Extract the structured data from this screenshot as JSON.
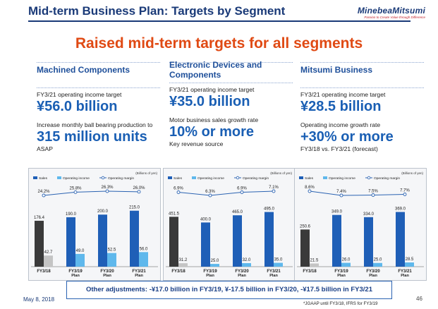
{
  "slide": {
    "title": "Mid-term Business Plan: Targets by Segment",
    "headline": "Raised mid-term targets for all segments",
    "logo_name": "MinebeaMitsumi",
    "logo_tagline": "Passion to Create Value through Difference"
  },
  "segments": [
    {
      "name": "Machined Components",
      "target_label": "FY3/21 operating income target",
      "target_value": "¥56.0 billion",
      "sub_label_line1": "Increase monthly ball bearing production to",
      "sub_value": "315 million units",
      "sub_note": "ASAP"
    },
    {
      "name_line1": "Electronic Devices and",
      "name_line2": "Components",
      "target_label": "FY3/21 operating income target",
      "target_value": "¥35.0 billion",
      "sub_label_line1": "Motor business sales growth rate",
      "sub_value": "10% or more",
      "sub_note": "Key revenue source"
    },
    {
      "name": "Mitsumi Business",
      "target_label": "FY3/21 operating income target",
      "target_value": "¥28.5 billion",
      "sub_label_line1": "Operating income growth rate",
      "sub_value": "+30% or more",
      "sub_note": "FY3/18 vs. FY3/21 (forecast)"
    }
  ],
  "chart_data": [
    {
      "type": "bar",
      "title": "Machined Components",
      "unit_label": "(Billions of yen)",
      "legend": [
        "Sales",
        "Operating income",
        "Operating margin"
      ],
      "categories": [
        "FY3/18",
        "FY3/19 Plan",
        "FY3/20 Plan",
        "FY3/21 Plan"
      ],
      "series": [
        {
          "name": "Sales",
          "values": [
            176.4,
            190.0,
            200.0,
            215.0
          ],
          "labels": [
            "176.4",
            "190.0",
            "200.0",
            "215.0"
          ]
        },
        {
          "name": "Operating income",
          "values": [
            42.7,
            49.0,
            52.5,
            56.0
          ],
          "labels": [
            "42.7",
            "49.0",
            "52.5",
            "56.0"
          ]
        }
      ],
      "margin": {
        "name": "Operating margin",
        "values": [
          24.2,
          25.8,
          26.3,
          26.0
        ],
        "labels": [
          "24.2%",
          "25.8%",
          "26.3%",
          "26.0%"
        ]
      },
      "ymax": 225
    },
    {
      "type": "bar",
      "title": "Electronic Devices and Components",
      "unit_label": "(Billions of yen)",
      "legend": [
        "Sales",
        "Operating income",
        "Operating margin"
      ],
      "categories": [
        "FY3/18",
        "FY3/19 Plan",
        "FY3/20 Plan",
        "FY3/21 Plan"
      ],
      "series": [
        {
          "name": "Sales",
          "values": [
            451.5,
            400.0,
            465.0,
            495.0
          ],
          "labels": [
            "451.5",
            "400.0",
            "465.0",
            "495.0"
          ]
        },
        {
          "name": "Operating income",
          "values": [
            31.2,
            25.0,
            32.0,
            35.0
          ],
          "labels": [
            "31.2",
            "25.0",
            "32.0",
            "35.0"
          ]
        }
      ],
      "margin": {
        "name": "Operating margin",
        "values": [
          6.9,
          6.3,
          6.9,
          7.1
        ],
        "labels": [
          "6.9%",
          "6.3%",
          "6.9%",
          "7.1%"
        ]
      },
      "ymax": 530
    },
    {
      "type": "bar",
      "title": "Mitsumi Business",
      "unit_label": "(Billions of yen)",
      "legend": [
        "Sales",
        "Operating income",
        "Operating margin"
      ],
      "categories": [
        "FY3/18",
        "FY3/19 Plan",
        "FY3/20 Plan",
        "FY3/21 Plan"
      ],
      "series": [
        {
          "name": "Sales",
          "values": [
            250.6,
            349.0,
            334.0,
            369.0
          ],
          "labels": [
            "250.6",
            "349.0",
            "334.0",
            "369.0"
          ]
        },
        {
          "name": "Operating income",
          "values": [
            21.5,
            26.0,
            25.0,
            28.5
          ],
          "labels": [
            "21.5",
            "26.0",
            "25.0",
            "28.5"
          ]
        }
      ],
      "margin": {
        "name": "Operating margin",
        "values": [
          8.6,
          7.4,
          7.5,
          7.7
        ],
        "labels": [
          "8.6%",
          "7.4%",
          "7.5%",
          "7.7%"
        ]
      },
      "ymax": 395
    }
  ],
  "colors": {
    "sales_actual": "#3a3a3a",
    "oi_actual": "#c4c4c4",
    "sales_plan": "#1f5fb7",
    "oi_plan": "#5fb8ec",
    "margin_line": "#2b63b2"
  },
  "footer": {
    "adjustments": "Other adjustments: -¥17.0 billion in FY3/19, ¥-17.5 billion in FY3/20, -¥17.5 billion in FY3/21",
    "date": "May 8, 2018",
    "note": "*JGAAP until FY3/18, IFRS for FY3/19",
    "page": "46"
  }
}
